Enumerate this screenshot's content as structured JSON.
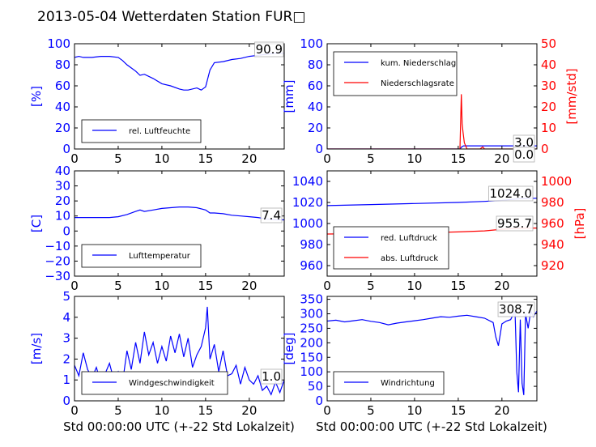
{
  "title": "2013-05-04 Wetterdaten Station FUR□",
  "xlabel": "Std 00:00:00 UTC (+-22 Std Lokalzeit)",
  "colors": {
    "blue": "#0000ff",
    "red": "#ff0000",
    "lightblue": "#8080ff"
  },
  "chart_data": [
    {
      "type": "line",
      "ylabel": "[%]",
      "xlim": [
        0,
        24
      ],
      "ylim": [
        0,
        100
      ],
      "xticks": [
        "0",
        "5",
        "10",
        "15",
        "20"
      ],
      "yticks": [
        "0",
        "20",
        "40",
        "60",
        "80",
        "100"
      ],
      "legend": "bottom-left",
      "annotation": "90.9",
      "series": [
        {
          "name": "rel. Luftfeuchte",
          "color": "#0000ff",
          "x": [
            0,
            0.5,
            1,
            2,
            3,
            4,
            5,
            5.5,
            6,
            6.5,
            7,
            7.5,
            8,
            9,
            10,
            11,
            12,
            12.5,
            13,
            14,
            14.5,
            15,
            15.5,
            16,
            17,
            18,
            19,
            20,
            21,
            22,
            23,
            24
          ],
          "y": [
            87,
            88,
            87,
            87,
            88,
            88,
            87,
            84,
            80,
            77,
            74,
            70,
            71,
            67,
            62,
            60,
            57,
            56,
            56,
            58,
            56,
            59,
            75,
            82,
            83,
            85,
            86,
            88,
            89,
            90,
            91,
            91
          ]
        }
      ]
    },
    {
      "type": "line",
      "ylabel": "[mm]",
      "ylabel_right": "[mm/std]",
      "xlim": [
        0,
        24
      ],
      "ylim": [
        0,
        100
      ],
      "ylim_right": [
        0,
        50
      ],
      "xticks": [
        "0",
        "5",
        "10",
        "15",
        "20"
      ],
      "yticks": [
        "0",
        "20",
        "40",
        "60",
        "80",
        "100"
      ],
      "yticks_right": [
        "0",
        "10",
        "20",
        "30",
        "40",
        "50"
      ],
      "legend": "top-left",
      "annotations": [
        "3.0",
        "0.0"
      ],
      "series": [
        {
          "name": "kum. Niederschlag",
          "color": "#0000ff",
          "x": [
            0,
            15.2,
            15.4,
            15.6,
            24
          ],
          "y": [
            0,
            0,
            2,
            3,
            3
          ]
        },
        {
          "name": "Niederschlagsrate",
          "color": "#ff0000",
          "axis": "right",
          "x": [
            0,
            15.2,
            15.35,
            15.45,
            15.55,
            15.7,
            16.0,
            17.5,
            17.8,
            18.0,
            24
          ],
          "y": [
            0,
            0,
            26,
            12,
            8,
            3,
            0,
            0,
            1,
            0,
            0
          ]
        }
      ]
    },
    {
      "type": "line",
      "ylabel": "[C]",
      "xlim": [
        0,
        24
      ],
      "ylim": [
        -30,
        40
      ],
      "xticks": [
        "0",
        "5",
        "10",
        "15",
        "20"
      ],
      "yticks": [
        "−30",
        "−20",
        "−10",
        "0",
        "10",
        "20",
        "30",
        "40"
      ],
      "legend": "bottom-left",
      "annotation": "7.4",
      "series": [
        {
          "name": "Lufttemperatur",
          "color": "#0000ff",
          "x": [
            0,
            2,
            4,
            5,
            6,
            7,
            7.5,
            8,
            9,
            10,
            11,
            12,
            13,
            14,
            15,
            15.5,
            16,
            17,
            18,
            19,
            20,
            21,
            22,
            23,
            24
          ],
          "y": [
            9,
            9,
            9,
            9.5,
            11,
            13,
            14,
            13,
            14,
            15,
            15.5,
            16,
            16,
            15.5,
            14,
            12,
            12,
            11.5,
            10.5,
            10,
            9.5,
            9,
            8,
            7.5,
            7.4
          ]
        }
      ]
    },
    {
      "type": "line",
      "ylabel": "",
      "ylabel_right": "[hPa]",
      "xlim": [
        0,
        24
      ],
      "ylim": [
        950,
        1050
      ],
      "ylim_right": [
        910,
        1010
      ],
      "xticks": [
        "0",
        "5",
        "10",
        "15",
        "20"
      ],
      "yticks": [
        "960",
        "980",
        "1000",
        "1020",
        "1040"
      ],
      "yticks_right": [
        "920",
        "940",
        "960",
        "980",
        "1000"
      ],
      "legend": "bottom-left",
      "annotations": [
        "1024.0",
        "955.7"
      ],
      "series": [
        {
          "name": "red. Luftdruck",
          "color": "#0000ff",
          "x": [
            0,
            5,
            10,
            15,
            18,
            20,
            22,
            24
          ],
          "y": [
            1017,
            1018,
            1019,
            1020,
            1021,
            1022,
            1023.5,
            1024
          ]
        },
        {
          "name": "abs. Luftdruck",
          "color": "#ff0000",
          "axis": "right",
          "x": [
            0,
            5,
            10,
            15,
            18,
            20,
            22,
            24
          ],
          "y": [
            950,
            950.5,
            951,
            952,
            953,
            954.5,
            955.5,
            955.7
          ]
        }
      ]
    },
    {
      "type": "line",
      "ylabel": "[m/s]",
      "xlim": [
        0,
        24
      ],
      "ylim": [
        0,
        5
      ],
      "xticks": [
        "0",
        "5",
        "10",
        "15",
        "20"
      ],
      "yticks": [
        "0",
        "1",
        "2",
        "3",
        "4",
        "5"
      ],
      "legend": "bottom-left",
      "annotation": "1.0",
      "series": [
        {
          "name": "Windgeschwindigkeit",
          "color": "#0000ff",
          "x": [
            0,
            0.5,
            1,
            1.5,
            2,
            2.5,
            3,
            3.5,
            4,
            4.5,
            5,
            5.5,
            6,
            6.5,
            7,
            7.5,
            8,
            8.5,
            9,
            9.5,
            10,
            10.5,
            11,
            11.5,
            12,
            12.5,
            13,
            13.5,
            14,
            14.5,
            15,
            15.2,
            15.5,
            16,
            16.5,
            17,
            17.5,
            18,
            18.5,
            19,
            19.5,
            20,
            20.5,
            21,
            21.5,
            22,
            22.5,
            23,
            23.5,
            24
          ],
          "y": [
            1.7,
            1.2,
            2.3,
            1.5,
            1.1,
            1.6,
            0.9,
            1.3,
            1.8,
            1.0,
            1.4,
            0.9,
            2.4,
            1.5,
            2.8,
            1.8,
            3.3,
            2.2,
            2.8,
            1.8,
            2.6,
            1.9,
            3.1,
            2.3,
            3.2,
            2.1,
            3.0,
            1.6,
            2.2,
            2.6,
            3.5,
            4.5,
            2.0,
            2.7,
            1.4,
            2.4,
            1.2,
            1.3,
            1.7,
            0.8,
            1.6,
            1.0,
            0.8,
            1.2,
            0.5,
            0.7,
            0.3,
            0.9,
            0.4,
            1.0
          ]
        }
      ]
    },
    {
      "type": "line",
      "ylabel": "[deg]",
      "xlim": [
        0,
        24
      ],
      "ylim": [
        0,
        360
      ],
      "xticks": [
        "0",
        "5",
        "10",
        "15",
        "20"
      ],
      "yticks": [
        "0",
        "50",
        "100",
        "150",
        "200",
        "250",
        "300",
        "350"
      ],
      "legend": "bottom-left",
      "annotation": "308.7",
      "series": [
        {
          "name": "Windrichtung",
          "color": "#0000ff",
          "x": [
            0,
            1,
            2,
            3,
            4,
            5,
            6,
            7,
            8,
            9,
            10,
            11,
            12,
            13,
            14,
            15,
            16,
            17,
            18,
            19,
            19.3,
            19.6,
            20,
            20.5,
            21,
            21.5,
            21.7,
            21.9,
            22.1,
            22.3,
            22.5,
            22.7,
            23,
            23.3,
            23.6,
            24
          ],
          "y": [
            275,
            278,
            272,
            276,
            280,
            274,
            270,
            262,
            268,
            272,
            276,
            280,
            285,
            290,
            288,
            292,
            295,
            290,
            285,
            270,
            220,
            190,
            265,
            275,
            280,
            310,
            100,
            30,
            280,
            60,
            20,
            300,
            250,
            310,
            290,
            309
          ]
        }
      ]
    }
  ]
}
